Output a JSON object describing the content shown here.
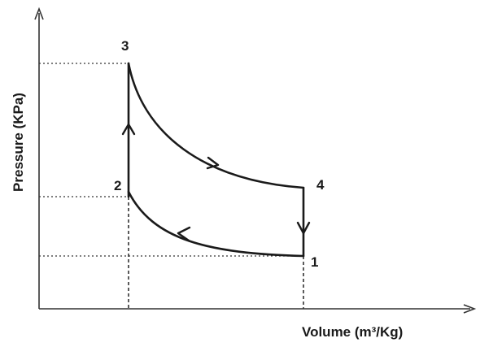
{
  "axes": {
    "x_label": "Volume (m³/Kg)",
    "y_label": "Pressure (KPa)"
  },
  "states": [
    {
      "id": "1",
      "label": "1"
    },
    {
      "id": "2",
      "label": "2"
    },
    {
      "id": "3",
      "label": "3"
    },
    {
      "id": "4",
      "label": "4"
    }
  ],
  "processes": [
    {
      "from": "1",
      "to": "2",
      "kind": "curve"
    },
    {
      "from": "2",
      "to": "3",
      "kind": "vertical"
    },
    {
      "from": "3",
      "to": "4",
      "kind": "curve"
    },
    {
      "from": "4",
      "to": "1",
      "kind": "vertical"
    }
  ],
  "colors": {
    "line": "#1a1a1a",
    "axis": "#333333",
    "background": "#ffffff"
  }
}
